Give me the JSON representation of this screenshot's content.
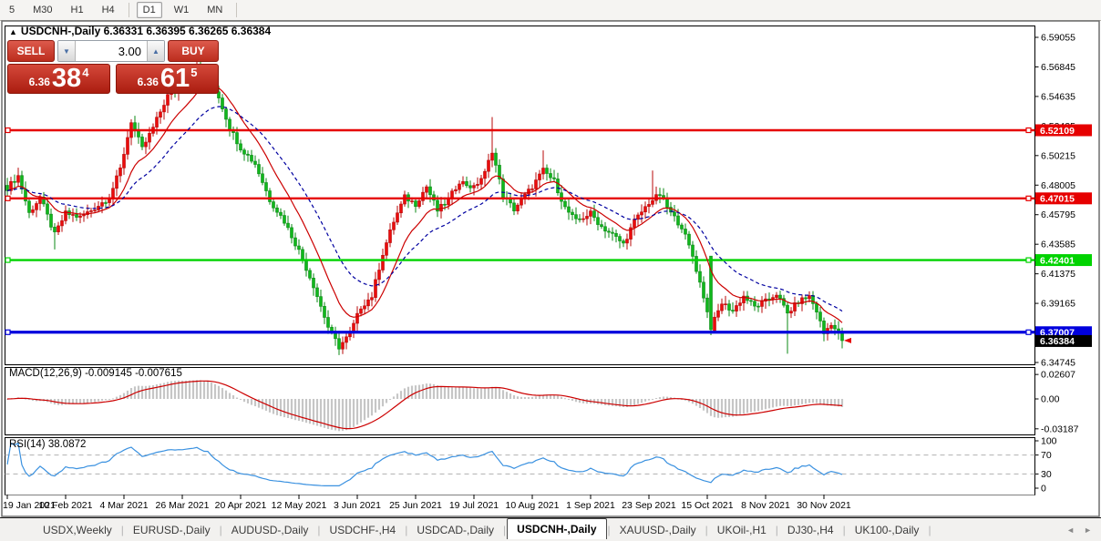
{
  "toolbar": {
    "timeframes": [
      {
        "label": "5",
        "active": false
      },
      {
        "label": "M30",
        "active": false
      },
      {
        "label": "H1",
        "active": false
      },
      {
        "label": "H4",
        "active": false
      },
      {
        "label": "D1",
        "active": true
      },
      {
        "label": "W1",
        "active": false
      },
      {
        "label": "MN",
        "active": false
      }
    ]
  },
  "header": {
    "collapse_icon": "▲",
    "symbol": "USDCNH-,Daily",
    "ohlc": "6.36331 6.36395 6.36265 6.36384"
  },
  "trade_widget": {
    "sell_label": "SELL",
    "buy_label": "BUY",
    "volume": "3.00",
    "spin_down_icon": "▼",
    "spin_up_icon": "▲",
    "sell_price_small": "6.36",
    "sell_price_big": "38",
    "sell_price_sup": "4",
    "buy_price_small": "6.36",
    "buy_price_big": "61",
    "buy_price_sup": "5"
  },
  "indicators": {
    "macd_label": "MACD(12,26,9) -0.009145 -0.007615",
    "rsi_label": "RSI(14) 38.0872"
  },
  "axes": {
    "price_ticks": [
      "6.59055",
      "6.56845",
      "6.54635",
      "6.52425",
      "6.50215",
      "6.48005",
      "6.45795",
      "6.43585",
      "6.41375",
      "6.39165",
      "6.36955",
      "6.34745"
    ],
    "macd_ticks": [
      "0.02607",
      "0.00",
      "-0.03187"
    ],
    "rsi_ticks": [
      "100",
      "70",
      "30",
      "0"
    ],
    "dates": [
      "19 Jan 2021",
      "10 Feb 2021",
      "4 Mar 2021",
      "26 Mar 2021",
      "20 Apr 2021",
      "12 May 2021",
      "3 Jun 2021",
      "25 Jun 2021",
      "19 Jul 2021",
      "10 Aug 2021",
      "1 Sep 2021",
      "23 Sep 2021",
      "15 Oct 2021",
      "8 Nov 2021",
      "30 Nov 2021"
    ]
  },
  "chart_data": {
    "type": "candlestick",
    "symbol": "USDCNH-",
    "timeframe": "Daily",
    "visible_range": {
      "price_min": 6.3474,
      "price_max": 6.5953,
      "first_date": "19 Jan 2021",
      "last_date": "7 Dec 2021"
    },
    "bars": 230,
    "close_anchors": [
      [
        0,
        6.478
      ],
      [
        3,
        6.487
      ],
      [
        6,
        6.459
      ],
      [
        9,
        6.471
      ],
      [
        13,
        6.443
      ],
      [
        16,
        6.459
      ],
      [
        20,
        6.456
      ],
      [
        24,
        6.463
      ],
      [
        28,
        6.471
      ],
      [
        31,
        6.492
      ],
      [
        34,
        6.528
      ],
      [
        37,
        6.507
      ],
      [
        40,
        6.523
      ],
      [
        44,
        6.547
      ],
      [
        48,
        6.553
      ],
      [
        52,
        6.567
      ],
      [
        55,
        6.561
      ],
      [
        58,
        6.546
      ],
      [
        61,
        6.523
      ],
      [
        64,
        6.508
      ],
      [
        68,
        6.496
      ],
      [
        72,
        6.469
      ],
      [
        76,
        6.453
      ],
      [
        80,
        6.431
      ],
      [
        84,
        6.405
      ],
      [
        88,
        6.374
      ],
      [
        91,
        6.359
      ],
      [
        94,
        6.369
      ],
      [
        97,
        6.389
      ],
      [
        100,
        6.397
      ],
      [
        103,
        6.429
      ],
      [
        106,
        6.453
      ],
      [
        109,
        6.471
      ],
      [
        112,
        6.466
      ],
      [
        115,
        6.479
      ],
      [
        118,
        6.461
      ],
      [
        121,
        6.469
      ],
      [
        124,
        6.483
      ],
      [
        128,
        6.478
      ],
      [
        131,
        6.489
      ],
      [
        133,
        6.506
      ],
      [
        136,
        6.472
      ],
      [
        139,
        6.462
      ],
      [
        144,
        6.479
      ],
      [
        147,
        6.491
      ],
      [
        150,
        6.483
      ],
      [
        153,
        6.463
      ],
      [
        156,
        6.453
      ],
      [
        160,
        6.459
      ],
      [
        163,
        6.449
      ],
      [
        166,
        6.443
      ],
      [
        169,
        6.436
      ],
      [
        172,
        6.453
      ],
      [
        176,
        6.467
      ],
      [
        179,
        6.473
      ],
      [
        182,
        6.459
      ],
      [
        185,
        6.449
      ],
      [
        188,
        6.427
      ],
      [
        191,
        6.397
      ],
      [
        193,
        6.373
      ],
      [
        196,
        6.392
      ],
      [
        199,
        6.386
      ],
      [
        202,
        6.397
      ],
      [
        205,
        6.389
      ],
      [
        208,
        6.393
      ],
      [
        211,
        6.399
      ],
      [
        214,
        6.384
      ],
      [
        217,
        6.393
      ],
      [
        220,
        6.397
      ],
      [
        222,
        6.386
      ],
      [
        224,
        6.369
      ],
      [
        226,
        6.377
      ],
      [
        229,
        6.3638
      ]
    ],
    "candle_overrides": {
      "13": {
        "low": 6.432
      },
      "53": {
        "high": 6.5755
      },
      "91": {
        "low": 6.353
      },
      "133": {
        "high": 6.531
      },
      "147": {
        "high": 6.506
      },
      "177": {
        "high": 6.491
      },
      "193": {
        "open": 6.427,
        "close": 6.372
      },
      "214": {
        "low": 6.354
      },
      "229": {
        "close": 6.3638,
        "low": 6.358
      }
    },
    "levels": [
      {
        "price": 6.52109,
        "label": "6.52109",
        "color": "#e60000",
        "width": 2.4
      },
      {
        "price": 6.47015,
        "label": "6.47015",
        "color": "#e60000",
        "width": 2.4
      },
      {
        "price": 6.42401,
        "label": "6.42401",
        "color": "#00d300",
        "width": 2.4
      },
      {
        "price": 6.37007,
        "label": "6.37007",
        "color": "#0000dd",
        "width": 3.2
      }
    ],
    "current_price": {
      "value": 6.36384,
      "label": "6.36384",
      "badge_color": "#000000"
    },
    "moving_averages": [
      {
        "period": 12,
        "color": "#cc0000",
        "style": "solid"
      },
      {
        "period": 26,
        "color": "#0000a0",
        "style": "dashed"
      }
    ],
    "macd": {
      "fast": 12,
      "slow": 26,
      "signal": 9,
      "hist_color": "#c6c6c6",
      "signal_color": "#cc0000",
      "scale_values": [
        0.02607,
        0,
        -0.03187
      ]
    },
    "rsi": {
      "period": 14,
      "color": "#3a91e0",
      "levels": [
        70,
        30
      ],
      "scale_values": [
        100,
        70,
        30,
        0
      ]
    }
  },
  "colors": {
    "bull_fill": "#ea0c0c",
    "bull_stroke": "#b80909",
    "bear_fill": "#10b71c",
    "bear_stroke": "#0b8a14",
    "panel_border": "#000000",
    "frame": "#6e6e6e",
    "axis_text": "#000000",
    "dashed_level": "#b0b0b0"
  },
  "tabs": {
    "items": [
      {
        "label": "USDX,Weekly",
        "active": false
      },
      {
        "label": "EURUSD-,Daily",
        "active": false
      },
      {
        "label": "AUDUSD-,Daily",
        "active": false
      },
      {
        "label": "USDCHF-,H4",
        "active": false
      },
      {
        "label": "USDCAD-,Daily",
        "active": false
      },
      {
        "label": "USDCNH-,Daily",
        "active": true
      },
      {
        "label": "XAUUSD-,Daily",
        "active": false
      },
      {
        "label": "UKOil-,H1",
        "active": false
      },
      {
        "label": "DJ30-,H4",
        "active": false
      },
      {
        "label": "UK100-,Daily",
        "active": false
      }
    ],
    "scroll_left_icon": "◄",
    "scroll_right_icon": "►"
  }
}
